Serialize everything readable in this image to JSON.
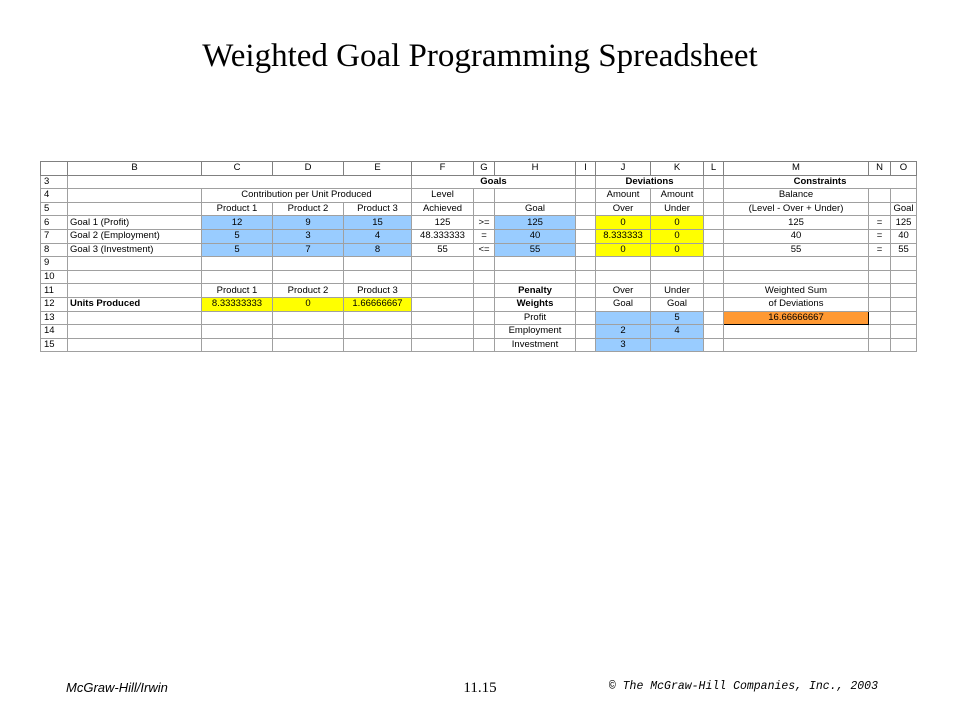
{
  "title": "Weighted Goal Programming Spreadsheet",
  "footer": {
    "publisher": "McGraw-Hill/Irwin",
    "slide_number": "11.15",
    "copyright": "© The McGraw-Hill Companies, Inc., 2003"
  },
  "colors": {
    "input_cells": "#99ccff",
    "changing_cells": "#ffff00",
    "objective_cell": "#ff9933"
  },
  "columns": [
    "B",
    "C",
    "D",
    "E",
    "F",
    "G",
    "H",
    "I",
    "J",
    "K",
    "L",
    "M",
    "N",
    "O"
  ],
  "rows": {
    "r3": {
      "num": "3",
      "goals": "Goals",
      "deviations": "Deviations",
      "constraints": "Constraints"
    },
    "r4": {
      "num": "4",
      "contrib": "Contribution per Unit Produced",
      "level": "Level",
      "amount_over": "Amount",
      "amount_under": "Amount",
      "balance": "Balance"
    },
    "r5": {
      "num": "5",
      "c": "Product 1",
      "d": "Product 2",
      "e": "Product 3",
      "f": "Achieved",
      "h": "Goal",
      "j": "Over",
      "k": "Under",
      "m": "(Level - Over + Under)",
      "o": "Goal"
    },
    "r6": {
      "num": "6",
      "b": "Goal 1 (Profit)",
      "c": "12",
      "d": "9",
      "e": "15",
      "f": "125",
      "g": ">=",
      "h": "125",
      "j": "0",
      "k": "0",
      "m": "125",
      "n": "=",
      "o": "125"
    },
    "r7": {
      "num": "7",
      "b": "Goal 2 (Employment)",
      "c": "5",
      "d": "3",
      "e": "4",
      "f": "48.333333",
      "g": "=",
      "h": "40",
      "j": "8.333333",
      "k": "0",
      "m": "40",
      "n": "=",
      "o": "40"
    },
    "r8": {
      "num": "8",
      "b": "Goal 3 (Investment)",
      "c": "5",
      "d": "7",
      "e": "8",
      "f": "55",
      "g": "<=",
      "h": "55",
      "j": "0",
      "k": "0",
      "m": "55",
      "n": "=",
      "o": "55"
    },
    "r9": {
      "num": "9"
    },
    "r10": {
      "num": "10"
    },
    "r11": {
      "num": "11",
      "c": "Product 1",
      "d": "Product 2",
      "e": "Product 3",
      "h": "Penalty",
      "j": "Over",
      "k": "Under",
      "m": "Weighted Sum"
    },
    "r12": {
      "num": "12",
      "b": "Units Produced",
      "c": "8.33333333",
      "d": "0",
      "e": "1.66666667",
      "h": "Weights",
      "j": "Goal",
      "k": "Goal",
      "m": "of Deviations"
    },
    "r13": {
      "num": "13",
      "h": "Profit",
      "k": "5",
      "m": "16.66666667"
    },
    "r14": {
      "num": "14",
      "h": "Employment",
      "j": "2",
      "k": "4"
    },
    "r15": {
      "num": "15",
      "h": "Investment",
      "j": "3"
    }
  }
}
